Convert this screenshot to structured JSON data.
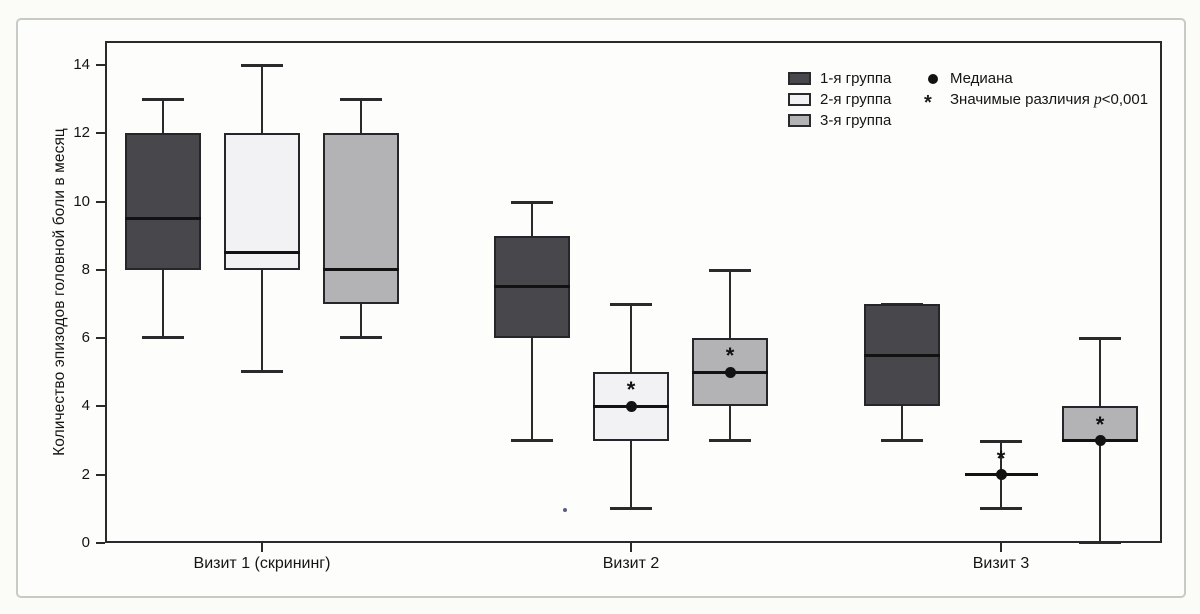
{
  "legend": {
    "median": {
      "label": "Медиана",
      "marker": "dot"
    },
    "significance": {
      "marker": "*",
      "prefix": "Значимые различия ",
      "p": "p",
      "rest": "<0,001"
    }
  },
  "chart_data": {
    "type": "boxplot",
    "title": "",
    "ylabel": "Количество эпизодов головной боли в месяц",
    "xlabel": "",
    "categories": [
      "Визит 1 (скрининг)",
      "Визит 2",
      "Визит 3"
    ],
    "ylim": [
      0,
      14
    ],
    "yticks": [
      0,
      2,
      4,
      6,
      8,
      10,
      12,
      14
    ],
    "grid": false,
    "legend_position": "top-right",
    "marker_notes": "Медиана = filled dot; * = значимые различия p<0,001",
    "groups": [
      {
        "name": "1-я группа",
        "color": "#48484c",
        "boxes": [
          {
            "category": "Визит 1 (скрининг)",
            "min": 6,
            "q1": 8,
            "median": 9.5,
            "q3": 12,
            "max": 13,
            "median_dot": false,
            "significant": false
          },
          {
            "category": "Визит 2",
            "min": 3,
            "q1": 6,
            "median": 7.5,
            "q3": 9,
            "max": 10,
            "median_dot": false,
            "significant": false
          },
          {
            "category": "Визит 3",
            "min": 3,
            "q1": 4,
            "median": 5.5,
            "q3": 7,
            "max": 7,
            "median_dot": false,
            "significant": false
          }
        ]
      },
      {
        "name": "2-я группа",
        "color": "#f2f2f4",
        "boxes": [
          {
            "category": "Визит 1 (скрининг)",
            "min": 5,
            "q1": 8,
            "median": 8.5,
            "q3": 12,
            "max": 14,
            "median_dot": false,
            "significant": false
          },
          {
            "category": "Визит 2",
            "min": 1,
            "q1": 3,
            "median": 4,
            "q3": 5,
            "max": 7,
            "median_dot": true,
            "significant": true
          },
          {
            "category": "Визит 3",
            "min": 1,
            "q1": 2,
            "median": 2,
            "q3": 2,
            "max": 3,
            "median_dot": true,
            "significant": true
          }
        ]
      },
      {
        "name": "3-я группа",
        "color": "#b3b3b6",
        "boxes": [
          {
            "category": "Визит 1 (скрининг)",
            "min": 6,
            "q1": 7,
            "median": 8,
            "q3": 12,
            "max": 13,
            "median_dot": false,
            "significant": false
          },
          {
            "category": "Визит 2",
            "min": 3,
            "q1": 4,
            "median": 5,
            "q3": 6,
            "max": 8,
            "median_dot": true,
            "significant": true
          },
          {
            "category": "Визит 3",
            "min": 0,
            "q1": 3,
            "median": 3,
            "q3": 4,
            "max": 6,
            "median_dot": true,
            "significant": true
          }
        ]
      }
    ]
  }
}
